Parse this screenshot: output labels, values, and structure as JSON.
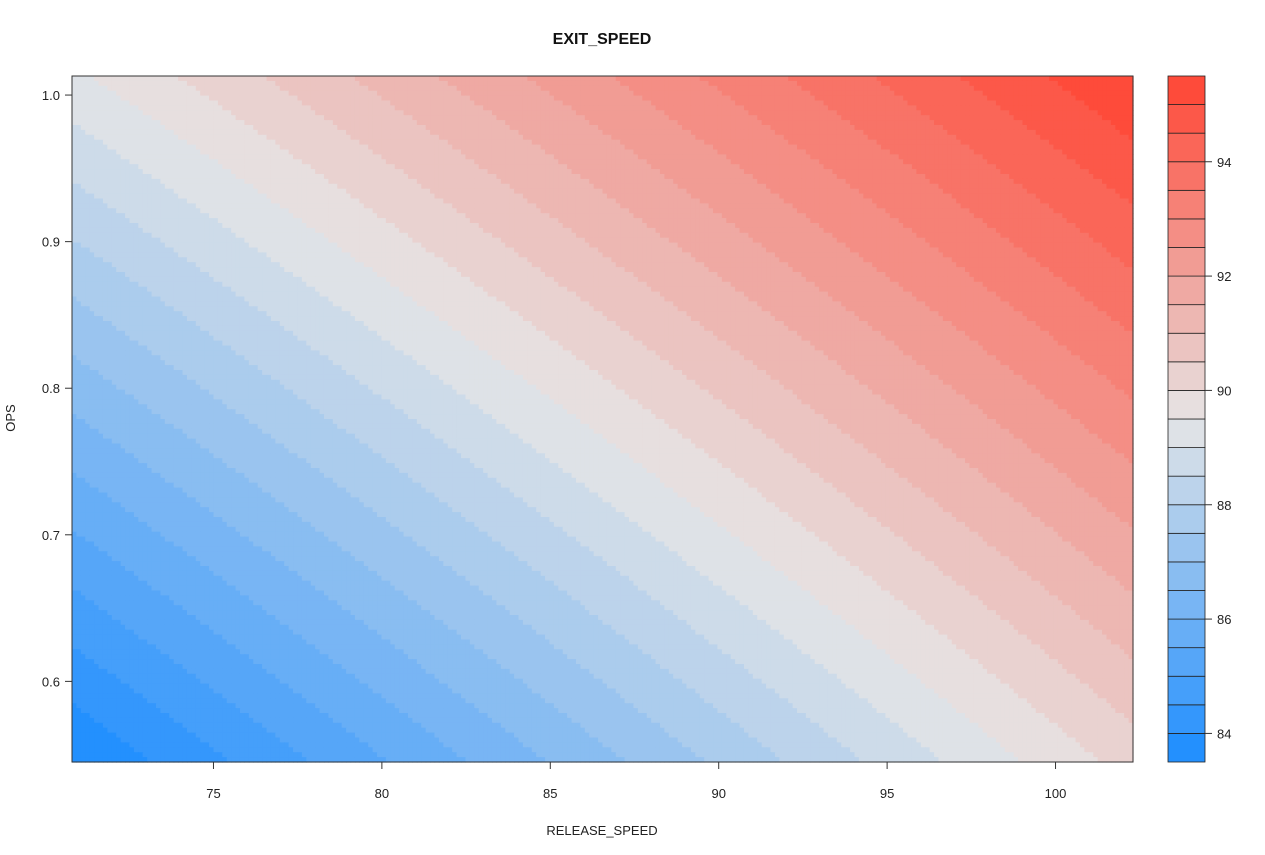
{
  "chart_data": {
    "type": "heatmap",
    "subtype": "filled-contour",
    "title": "EXIT_SPEED",
    "xlabel": "RELEASE_SPEED",
    "ylabel": "OPS",
    "xlim": [
      70.8,
      102.3
    ],
    "ylim": [
      0.545,
      1.013
    ],
    "x_ticks": [
      75,
      80,
      85,
      90,
      95,
      100
    ],
    "y_ticks": [
      0.6,
      0.7,
      0.8,
      0.9,
      1.0
    ],
    "x_tick_labels": [
      "75",
      "80",
      "85",
      "90",
      "95",
      "100"
    ],
    "y_tick_labels": [
      "0.6",
      "0.7",
      "0.8",
      "0.9",
      "1.0"
    ],
    "z_range": [
      83.5,
      95.5
    ],
    "contour_step": 0.5,
    "surface": {
      "description_of_values": "corner values of EXIT_SPEED read from the color scale",
      "corners": [
        {
          "x": 70.8,
          "y": 0.545,
          "z": 83.5
        },
        {
          "x": 102.3,
          "y": 0.545,
          "z": 90.2
        },
        {
          "x": 70.8,
          "y": 1.013,
          "z": 89.4
        },
        {
          "x": 102.3,
          "y": 1.013,
          "z": 95.5
        }
      ]
    },
    "colorbar": {
      "ticks": [
        84,
        86,
        88,
        90,
        92,
        94
      ],
      "tick_labels": [
        "84",
        "86",
        "88",
        "90",
        "92",
        "94"
      ],
      "low_color": "#1a8cff",
      "mid_color": "#e6e6e6",
      "high_color": "#ff4433",
      "mid_value": 89.5
    },
    "grid": false,
    "legend": "colorbar-right"
  }
}
